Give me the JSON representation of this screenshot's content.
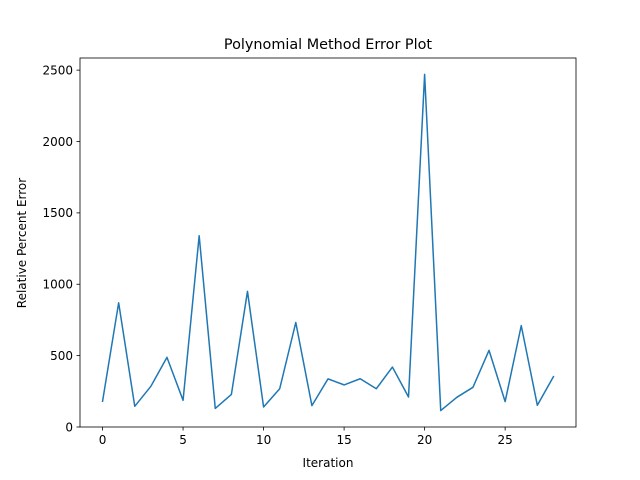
{
  "chart_data": {
    "type": "line",
    "title": "Polynomial Method Error Plot",
    "xlabel": "Iteration",
    "ylabel": "Relative Percent Error",
    "xlim": [
      -1.4,
      29.4
    ],
    "ylim": [
      0,
      2585
    ],
    "xticks": [
      0,
      5,
      10,
      15,
      20,
      25
    ],
    "yticks": [
      0,
      500,
      1000,
      1500,
      2000,
      2500
    ],
    "grid": false,
    "series": [
      {
        "color": "#1f77b4",
        "x": [
          0,
          1,
          2,
          3,
          4,
          5,
          6,
          7,
          8,
          9,
          10,
          11,
          12,
          13,
          14,
          15,
          16,
          17,
          18,
          19,
          20,
          21,
          22,
          23,
          24,
          25,
          26,
          27,
          28
        ],
        "values": [
          180,
          870,
          145,
          285,
          488,
          187,
          1340,
          130,
          228,
          950,
          140,
          268,
          732,
          150,
          337,
          295,
          338,
          268,
          420,
          210,
          2470,
          115,
          208,
          278,
          537,
          178,
          710,
          152,
          353
        ]
      }
    ]
  }
}
